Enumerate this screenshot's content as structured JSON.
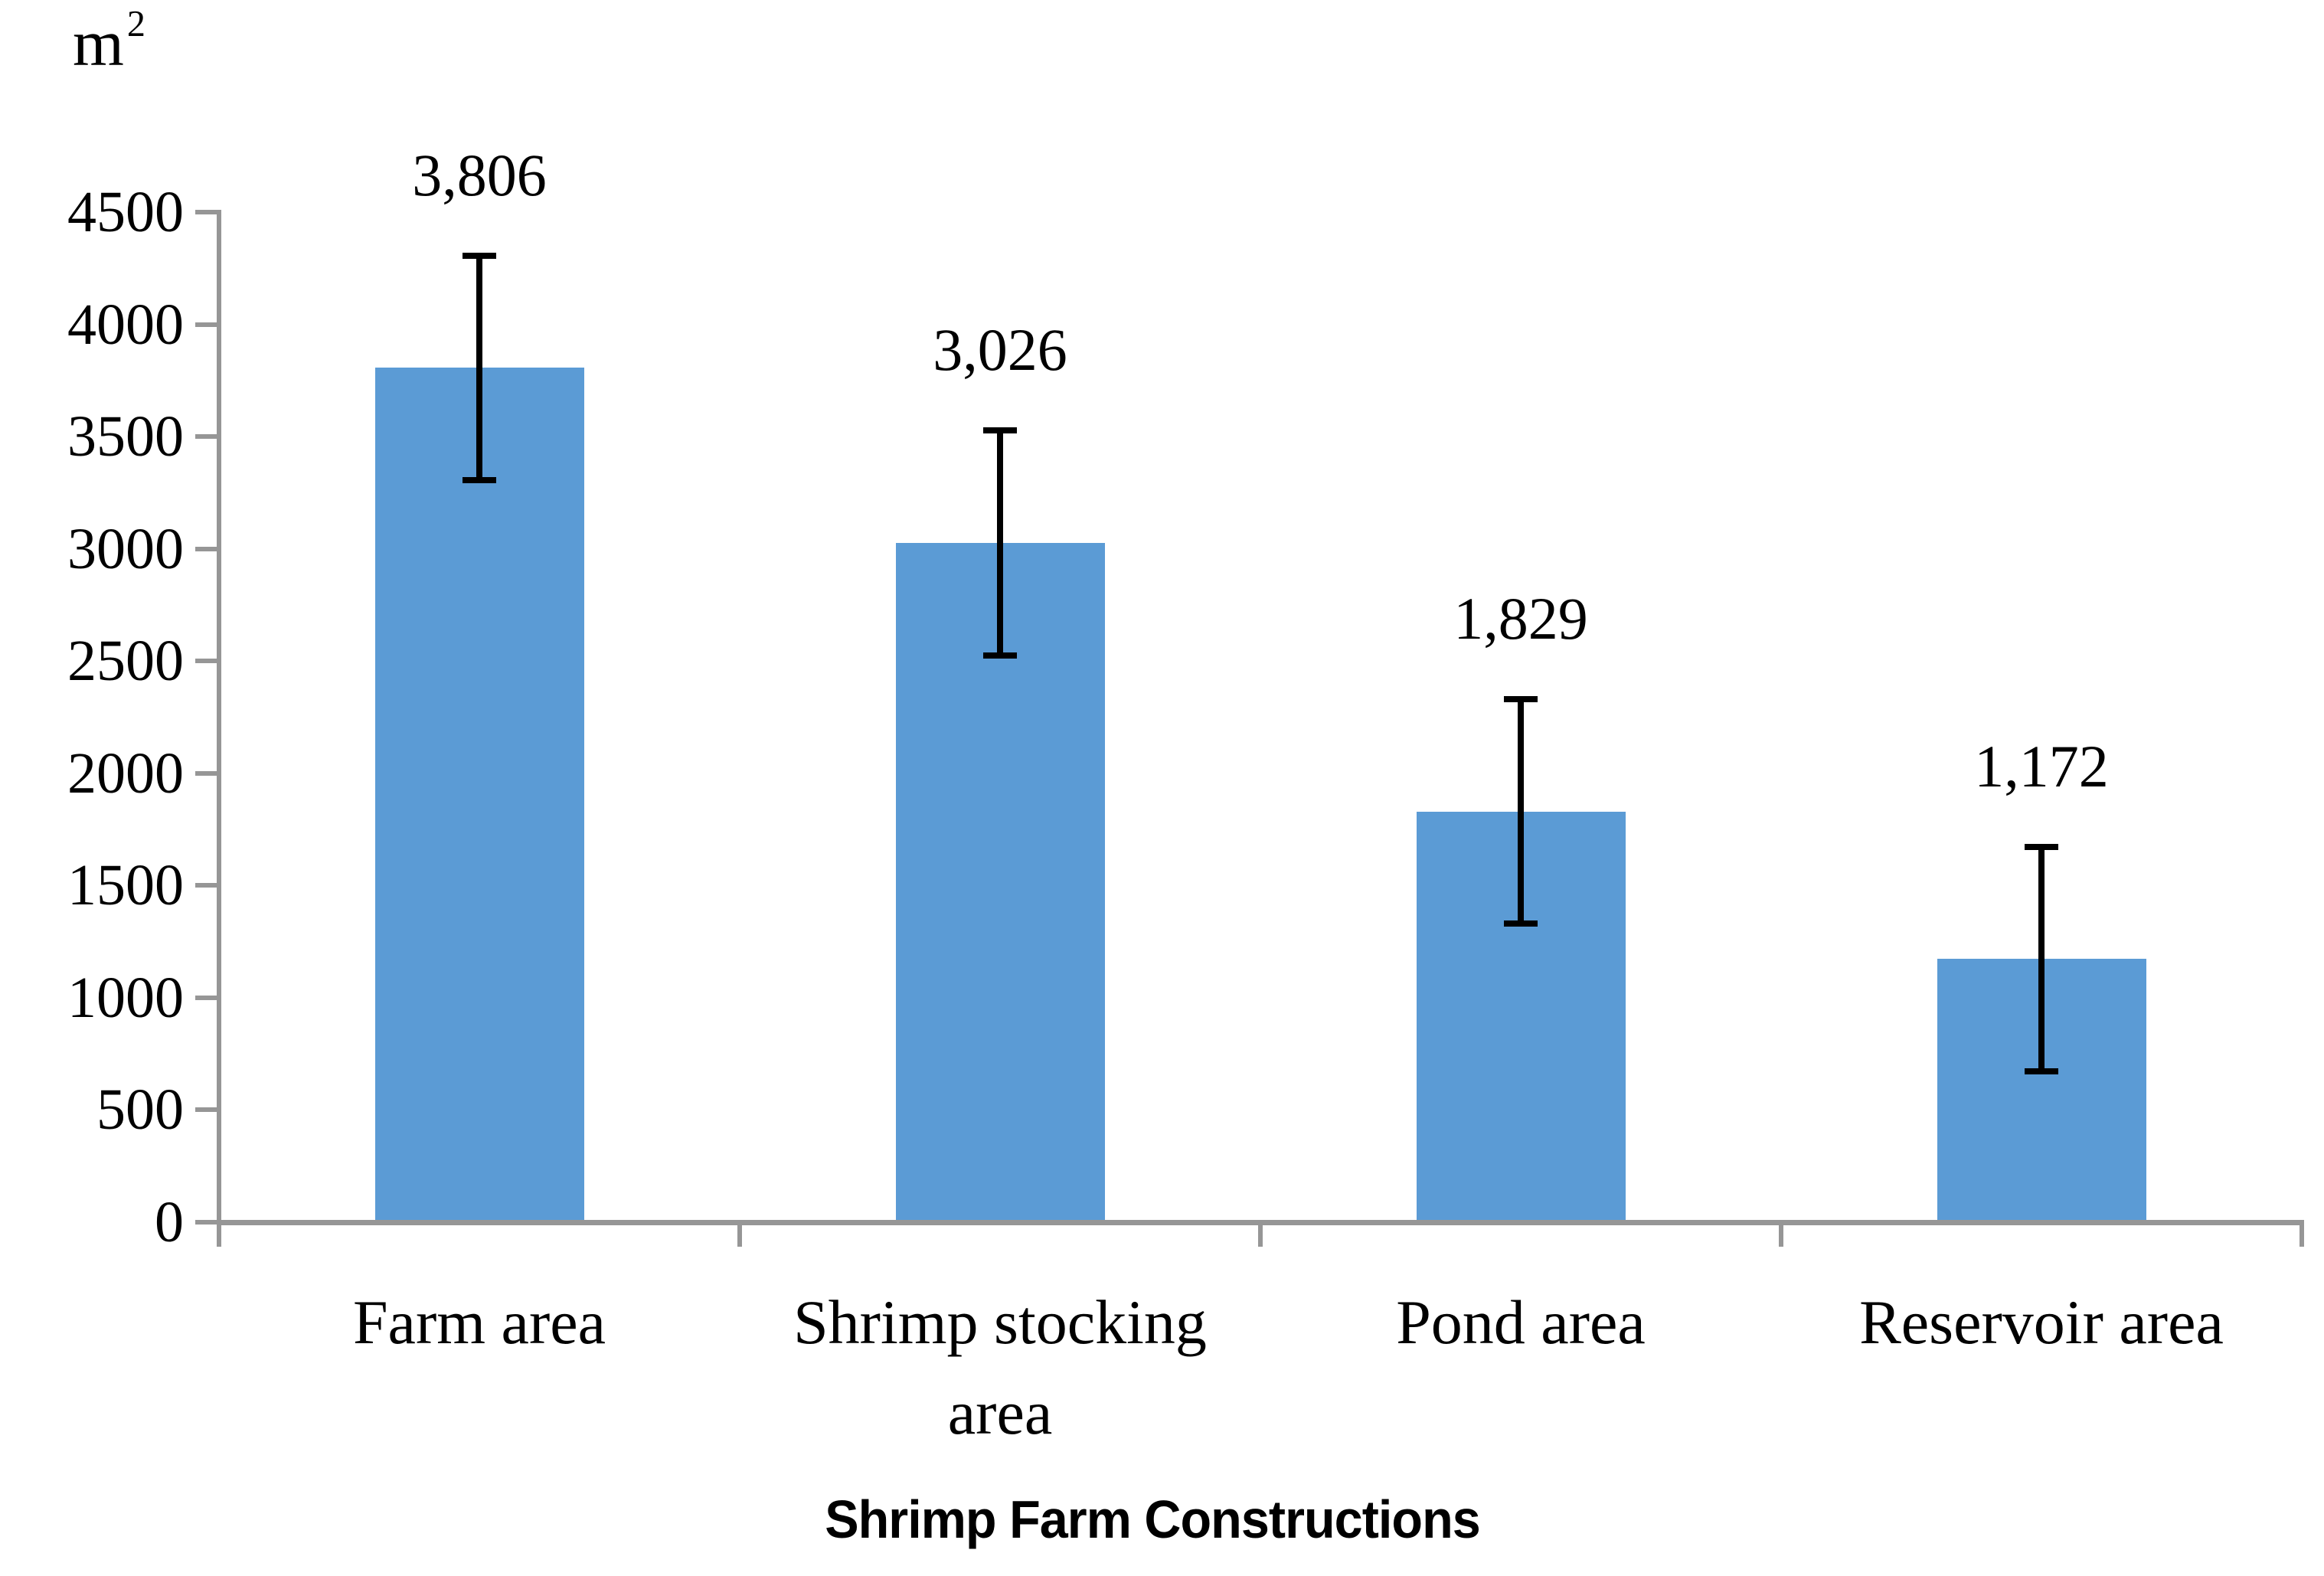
{
  "figure": {
    "y_axis_unit": {
      "base": "m",
      "exponent": "2"
    },
    "x_axis_title": "Shrimp Farm Constructions"
  },
  "chart_data": {
    "type": "bar",
    "title": "",
    "xlabel": "Shrimp Farm Constructions",
    "ylabel": "m²",
    "categories": [
      "Farm area",
      "Shrimp stocking area",
      "Pond area",
      "Reservoir area"
    ],
    "category_label_lines": [
      [
        "Farm area"
      ],
      [
        "Shrimp stocking",
        "area"
      ],
      [
        "Pond area"
      ],
      [
        "Reservoir area"
      ]
    ],
    "values": [
      3806,
      3026,
      1829,
      1172
    ],
    "value_labels": [
      "3,806",
      "3,026",
      "1,829",
      "1,172"
    ],
    "errors": [
      500,
      500,
      500,
      500
    ],
    "y_ticks": [
      0,
      500,
      1000,
      1500,
      2000,
      2500,
      3000,
      3500,
      4000,
      4500
    ],
    "ylim": [
      0,
      4500
    ],
    "grid": false,
    "legend": false,
    "bar_color": "#5B9BD5",
    "axis_color": "#969696",
    "error_bar_color": "#000000",
    "text_color": "#000000"
  }
}
